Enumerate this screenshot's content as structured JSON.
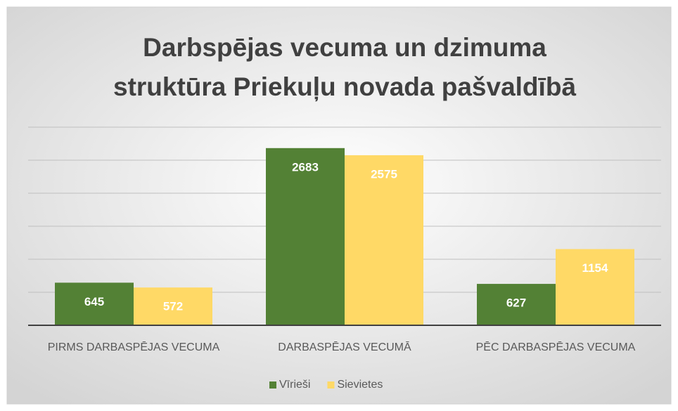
{
  "chart_data": {
    "type": "bar",
    "title": [
      "Darbspējas vecuma un dzimuma",
      "struktūra Priekuļu novada pašvaldībā"
    ],
    "categories": [
      "PIRMS DARBASPĒJAS VECUMA",
      "DARBASPĒJAS VECUMĀ",
      "PĒC DARBASPĒJAS VECUMA"
    ],
    "series": [
      {
        "name": "Vīrieši",
        "color": "#538135",
        "values": [
          645,
          2683,
          627
        ]
      },
      {
        "name": "Sievietes",
        "color": "#ffd966",
        "values": [
          572,
          2575,
          1154
        ]
      }
    ],
    "ylim": [
      0,
      3000
    ],
    "yticks": [
      0,
      500,
      1000,
      1500,
      2000,
      2500,
      3000
    ],
    "grid": true,
    "legend": "bottom"
  }
}
